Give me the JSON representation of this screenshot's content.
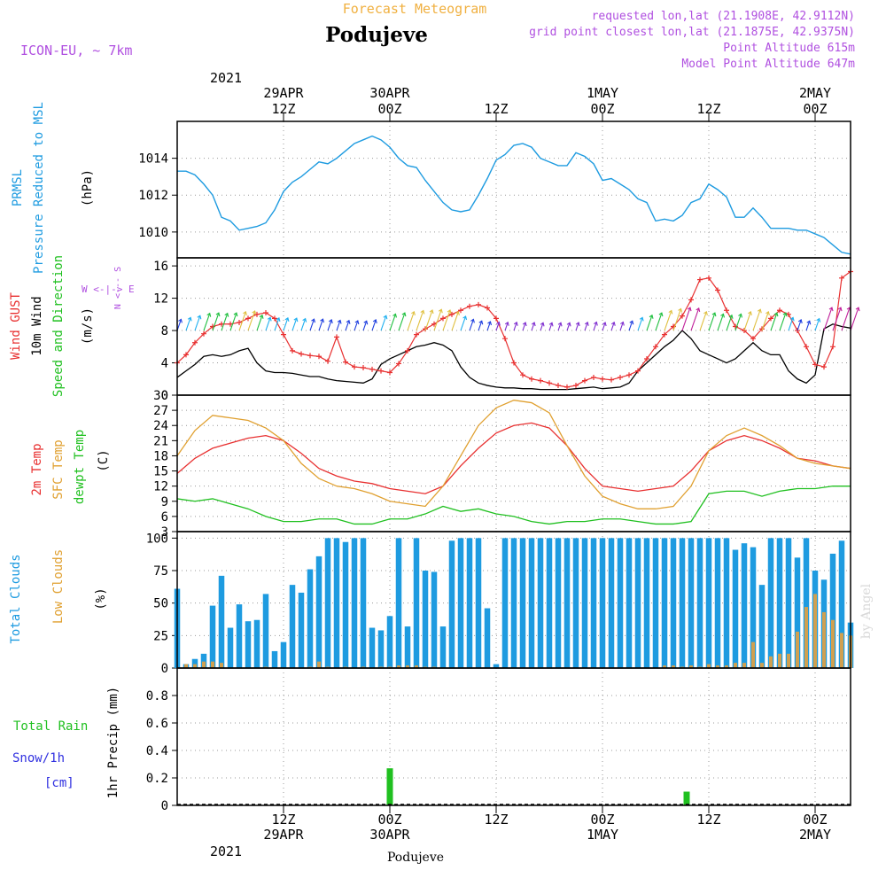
{
  "header": {
    "forecast_title": "Forecast Meteogram",
    "location": "Podujeve",
    "model": "ICON-EU, ~ 7km",
    "requested": "requested lon,lat (21.1908E, 42.9112N)",
    "grid_point": "grid point closest lon,lat (21.1875E, 42.9375N)",
    "point_alt": "Point Altitude 615m",
    "model_alt": "Model Point Altitude 647m"
  },
  "time_axis": {
    "top_year": "2021",
    "ticks": [
      {
        "h": 12,
        "top": "29APR",
        "bot": "12Z"
      },
      {
        "h": 24,
        "top": "30APR",
        "bot": "00Z"
      },
      {
        "h": 36,
        "top": "",
        "bot": "12Z"
      },
      {
        "h": 48,
        "top": "1MAY",
        "bot": "00Z"
      },
      {
        "h": 60,
        "top": "",
        "bot": "12Z"
      },
      {
        "h": 72,
        "top": "2MAY",
        "bot": "00Z"
      }
    ],
    "bottom_year": "2021",
    "bottom_label": "Podujeve",
    "start_hour": 0,
    "end_hour": 76
  },
  "panel_labels": {
    "p1": [
      "PRMSL",
      "Pressure Reduced to MSL"
    ],
    "p1_unit": "(hPa)",
    "p2_gust": "Wind GUST",
    "p2_wind": "10m Wind",
    "p2_dir": "Speed and Direction",
    "p2_unit": "(m/s)",
    "p2_compass_ns": "N\n<---\nS",
    "p2_compass_we": "W <-|-> E",
    "p3_t2m": "2m Temp",
    "p3_sfc": "SFC Temp",
    "p3_dew": "dewpt Temp",
    "p3_unit": "(C)",
    "p4_total": "Total Clouds",
    "p4_low": "Low Clouds",
    "p4_unit": "(%)",
    "p5_rain": "Total Rain",
    "p5_snow": "Snow/1h",
    "p5_cm": "[cm]",
    "p5_unit": "1hr Precip (mm)",
    "credit": "by Angel"
  },
  "colors": {
    "pressure": "#1e9be0",
    "gust": "#e83030",
    "wind": "#000000",
    "t2m": "#e83030",
    "sfc": "#e0a030",
    "dew": "#20c020",
    "total_clouds": "#1e9be0",
    "low_clouds": "#d0a050",
    "rain": "#20c020",
    "snow": "#3030e0",
    "purple": "#b050e0",
    "title_orange": "#f0b040"
  },
  "chart_data": [
    {
      "type": "line",
      "name": "pressure",
      "title": "PRMSL Pressure Reduced to MSL",
      "ylabel": "(hPa)",
      "ylim": [
        1008.6,
        1016.0
      ],
      "yticks": [
        1010,
        1012,
        1014
      ],
      "x": [
        0,
        1,
        2,
        3,
        4,
        5,
        6,
        7,
        8,
        9,
        10,
        11,
        12,
        13,
        14,
        15,
        16,
        17,
        18,
        19,
        20,
        21,
        22,
        23,
        24,
        25,
        26,
        27,
        28,
        29,
        30,
        31,
        32,
        33,
        34,
        35,
        36,
        37,
        38,
        39,
        40,
        41,
        42,
        43,
        44,
        45,
        46,
        47,
        48,
        49,
        50,
        51,
        52,
        53,
        54,
        55,
        56,
        57,
        58,
        59,
        60,
        61,
        62,
        63,
        64,
        65,
        66,
        67,
        68,
        69,
        70,
        71,
        72,
        73,
        74,
        75,
        76
      ],
      "values": [
        1013.3,
        1013.3,
        1013.1,
        1012.6,
        1012.0,
        1010.8,
        1010.6,
        1010.1,
        1010.2,
        1010.3,
        1010.5,
        1011.2,
        1012.2,
        1012.7,
        1013.0,
        1013.4,
        1013.8,
        1013.7,
        1014.0,
        1014.4,
        1014.8,
        1015.0,
        1015.2,
        1015.0,
        1014.6,
        1014.0,
        1013.6,
        1013.5,
        1012.8,
        1012.2,
        1011.6,
        1011.2,
        1011.1,
        1011.2,
        1012.0,
        1012.9,
        1013.9,
        1014.2,
        1014.7,
        1014.8,
        1014.6,
        1014.0,
        1013.8,
        1013.6,
        1013.6,
        1014.3,
        1014.1,
        1013.7,
        1012.8,
        1012.9,
        1012.6,
        1012.3,
        1011.8,
        1011.6,
        1010.6,
        1010.7,
        1010.6,
        1010.9,
        1011.6,
        1011.8,
        1012.6,
        1012.3,
        1011.9,
        1010.8,
        1010.8,
        1011.3,
        1010.8,
        1010.2,
        1010.2,
        1010.2,
        1010.1,
        1010.1,
        1009.9,
        1009.7,
        1009.3,
        1008.9,
        1008.8
      ]
    },
    {
      "type": "line",
      "name": "wind",
      "title": "Wind GUST / 10m Wind Speed and Direction",
      "ylabel": "(m/s)",
      "ylim": [
        0,
        17
      ],
      "yticks": [
        0,
        4,
        8,
        12,
        16
      ],
      "x": [
        0,
        1,
        2,
        3,
        4,
        5,
        6,
        7,
        8,
        9,
        10,
        11,
        12,
        13,
        14,
        15,
        16,
        17,
        18,
        19,
        20,
        21,
        22,
        23,
        24,
        25,
        26,
        27,
        28,
        29,
        30,
        31,
        32,
        33,
        34,
        35,
        36,
        37,
        38,
        39,
        40,
        41,
        42,
        43,
        44,
        45,
        46,
        47,
        48,
        49,
        50,
        51,
        52,
        53,
        54,
        55,
        56,
        57,
        58,
        59,
        60,
        61,
        62,
        63,
        64,
        65,
        66,
        67,
        68,
        69,
        70,
        71,
        72,
        73,
        74,
        75,
        76
      ],
      "series": [
        {
          "name": "Wind GUST",
          "values": [
            4.0,
            5.0,
            6.5,
            7.6,
            8.5,
            8.8,
            8.8,
            9.0,
            9.5,
            10.0,
            10.2,
            9.5,
            7.5,
            5.5,
            5.1,
            4.9,
            4.8,
            4.2,
            7.2,
            4.1,
            3.5,
            3.4,
            3.2,
            3.0,
            2.8,
            3.9,
            5.5,
            7.5,
            8.2,
            8.8,
            9.5,
            10.0,
            10.5,
            11.0,
            11.2,
            10.8,
            9.5,
            7.0,
            4.0,
            2.5,
            2.0,
            1.8,
            1.5,
            1.2,
            1.0,
            1.2,
            1.8,
            2.2,
            2.0,
            1.9,
            2.2,
            2.5,
            3.0,
            4.5,
            6.0,
            7.5,
            8.5,
            9.8,
            11.8,
            14.3,
            14.5,
            13.0,
            10.5,
            8.5,
            8.0,
            7.0,
            8.2,
            9.5,
            10.5,
            10.0,
            8.0,
            6.0,
            3.8,
            3.5,
            6.0,
            14.5,
            15.3
          ],
          "markers": true
        },
        {
          "name": "10m Wind",
          "values": [
            2.2,
            3.0,
            3.8,
            4.8,
            5.0,
            4.8,
            5.0,
            5.5,
            5.8,
            4.0,
            3.0,
            2.8,
            2.8,
            2.7,
            2.5,
            2.3,
            2.3,
            2.0,
            1.8,
            1.7,
            1.6,
            1.5,
            2.0,
            3.8,
            4.5,
            5.0,
            5.5,
            6.0,
            6.2,
            6.5,
            6.2,
            5.5,
            3.5,
            2.2,
            1.5,
            1.2,
            1.0,
            0.9,
            0.9,
            0.8,
            0.8,
            0.7,
            0.7,
            0.7,
            0.7,
            0.8,
            0.9,
            1.0,
            0.8,
            0.9,
            1.0,
            1.5,
            3.0,
            4.0,
            5.0,
            6.0,
            6.8,
            8.0,
            7.0,
            5.5,
            5.0,
            4.5,
            4.0,
            4.5,
            5.5,
            6.5,
            5.5,
            5.0,
            5.0,
            3.0,
            2.0,
            1.5,
            2.5,
            8.2,
            8.8,
            8.5,
            8.3
          ]
        }
      ]
    },
    {
      "type": "line",
      "name": "temperature",
      "title": "2m Temp / SFC Temp / dewpt Temp",
      "ylabel": "(C)",
      "ylim": [
        3,
        30
      ],
      "yticks": [
        3,
        6,
        9,
        12,
        15,
        18,
        21,
        24,
        27,
        30
      ],
      "x": [
        0,
        2,
        4,
        6,
        8,
        10,
        12,
        14,
        16,
        18,
        20,
        22,
        24,
        26,
        28,
        30,
        32,
        34,
        36,
        38,
        40,
        42,
        44,
        46,
        48,
        50,
        52,
        54,
        56,
        58,
        60,
        62,
        64,
        66,
        68,
        70,
        72,
        74,
        76
      ],
      "series": [
        {
          "name": "2m Temp",
          "values": [
            14.5,
            17.5,
            19.5,
            20.5,
            21.5,
            22.0,
            21.0,
            18.5,
            15.5,
            14.0,
            13.0,
            12.5,
            11.5,
            11.0,
            10.5,
            12.0,
            16.0,
            19.5,
            22.5,
            24.0,
            24.5,
            23.5,
            20.0,
            15.5,
            12.0,
            11.5,
            11.0,
            11.5,
            12.0,
            15.0,
            19.0,
            21.0,
            22.0,
            21.0,
            19.5,
            17.5,
            17.0,
            16.0,
            15.5
          ]
        },
        {
          "name": "SFC Temp",
          "values": [
            18.0,
            23.0,
            26.0,
            25.5,
            25.0,
            23.5,
            21.0,
            16.5,
            13.5,
            12.0,
            11.5,
            10.5,
            9.0,
            8.5,
            8.0,
            12.0,
            18.0,
            24.0,
            27.5,
            29.0,
            28.5,
            26.5,
            20.0,
            14.0,
            10.0,
            8.5,
            7.5,
            7.5,
            8.0,
            12.0,
            19.0,
            22.0,
            23.5,
            22.0,
            20.0,
            17.5,
            16.5,
            16.0,
            15.5
          ]
        },
        {
          "name": "dewpt Temp",
          "values": [
            9.5,
            9.0,
            9.5,
            8.5,
            7.5,
            6.0,
            5.0,
            5.0,
            5.5,
            5.5,
            4.5,
            4.5,
            5.5,
            5.5,
            6.5,
            8.0,
            7.0,
            7.5,
            6.5,
            6.0,
            5.0,
            4.5,
            5.0,
            5.0,
            5.5,
            5.5,
            5.0,
            4.5,
            4.5,
            5.0,
            10.5,
            11.0,
            11.0,
            10.0,
            11.0,
            11.5,
            11.5,
            12.0,
            12.0
          ]
        }
      ]
    },
    {
      "type": "bar",
      "name": "clouds",
      "title": "Total Clouds / Low Clouds",
      "ylabel": "(%)",
      "ylim": [
        0,
        105
      ],
      "yticks": [
        0,
        25,
        50,
        75,
        100
      ],
      "x": [
        0,
        1,
        2,
        3,
        4,
        5,
        6,
        7,
        8,
        9,
        10,
        11,
        12,
        13,
        14,
        15,
        16,
        17,
        18,
        19,
        20,
        21,
        22,
        23,
        24,
        25,
        26,
        27,
        28,
        29,
        30,
        31,
        32,
        33,
        34,
        35,
        36,
        37,
        38,
        39,
        40,
        41,
        42,
        43,
        44,
        45,
        46,
        47,
        48,
        49,
        50,
        51,
        52,
        53,
        54,
        55,
        56,
        57,
        58,
        59,
        60,
        61,
        62,
        63,
        64,
        65,
        66,
        67,
        68,
        69,
        70,
        71,
        72,
        73,
        74,
        75,
        76
      ],
      "series": [
        {
          "name": "Total Clouds",
          "values": [
            61,
            3,
            7,
            11,
            48,
            71,
            31,
            49,
            36,
            37,
            57,
            13,
            20,
            64,
            58,
            76,
            86,
            100,
            100,
            97,
            100,
            100,
            31,
            29,
            40,
            100,
            32,
            100,
            75,
            74,
            32,
            98,
            100,
            100,
            100,
            46,
            3,
            100,
            100,
            100,
            100,
            100,
            100,
            100,
            100,
            100,
            100,
            100,
            100,
            100,
            100,
            100,
            100,
            100,
            100,
            100,
            100,
            100,
            100,
            100,
            100,
            100,
            100,
            91,
            96,
            93,
            64,
            100,
            100,
            100,
            85,
            100,
            75,
            68,
            88,
            98,
            35
          ]
        },
        {
          "name": "Low Clouds",
          "values": [
            0,
            3,
            3,
            5,
            5,
            4,
            0,
            0,
            0,
            0,
            1,
            0,
            0,
            0,
            0,
            1,
            5,
            1,
            0,
            1,
            0,
            1,
            0,
            1,
            1,
            2,
            2,
            2,
            1,
            1,
            0,
            0,
            0,
            0,
            0,
            0,
            0,
            0,
            0,
            0,
            0,
            0,
            0,
            0,
            0,
            0,
            0,
            0,
            0,
            0,
            0,
            0,
            0,
            0,
            0,
            2,
            2,
            1,
            2,
            1,
            3,
            2,
            2,
            4,
            4,
            20,
            4,
            9,
            11,
            11,
            28,
            47,
            57,
            43,
            37,
            27,
            25
          ]
        }
      ]
    },
    {
      "type": "bar",
      "name": "precipitation",
      "title": "Total Rain / Snow/1h",
      "ylabel": "1hr Precip (mm)",
      "ylim": [
        0,
        1.0
      ],
      "yticks": [
        0,
        0.2,
        0.4,
        0.6,
        0.8
      ],
      "ytick_labels": [
        "0",
        "0.2",
        "0.4",
        "0.6",
        "0.8"
      ],
      "series": [
        {
          "name": "Total Rain",
          "points": [
            {
              "x": 24,
              "value": 0.27
            },
            {
              "x": 57.5,
              "value": 0.1
            }
          ]
        }
      ]
    }
  ]
}
